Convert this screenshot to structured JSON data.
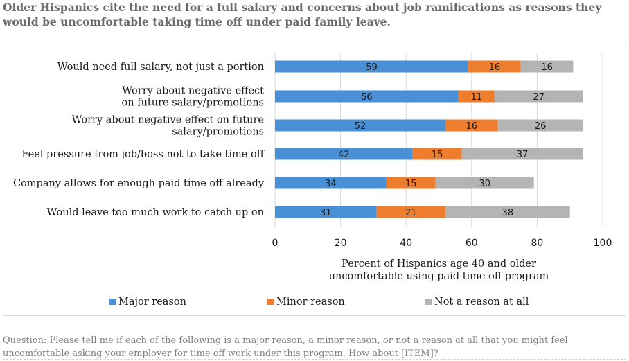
{
  "title_lines": [
    "Older Hispanics cite the need for a full salary and concerns about job ramifications as reasons they",
    "would be uncomfortable taking time off under paid family leave."
  ],
  "footer_lines": [
    "Question: Please tell me if each of the following is a major reason, a minor reason, or not a reason at all that you might feel",
    "uncomfortable asking your employer for time off work under this program. How about [ITEM]?"
  ],
  "chart_data": {
    "type": "bar",
    "orientation": "horizontal",
    "stacked": true,
    "categories": [
      [
        "Would need full salary, not just a portion"
      ],
      [
        "Worry about negative effect",
        "on future salary/promotions"
      ],
      [
        "Worry about negative effect on future",
        "salary/promotions"
      ],
      [
        "Feel pressure from job/boss not to take time off"
      ],
      [
        "Company allows for enough paid time off already"
      ],
      [
        "Would leave too much work to catch up on"
      ]
    ],
    "series": [
      {
        "name": "Major reason",
        "color": "#4a90d6",
        "values": [
          59,
          56,
          52,
          42,
          34,
          31
        ]
      },
      {
        "name": "Minor reason",
        "color": "#ee7d2d",
        "values": [
          16,
          11,
          16,
          15,
          15,
          21
        ]
      },
      {
        "name": "Not a reason at all",
        "color": "#b4b4b4",
        "values": [
          16,
          27,
          26,
          37,
          30,
          38
        ]
      }
    ],
    "xlim": [
      0,
      100
    ],
    "xticks": [
      0,
      20,
      40,
      60,
      80,
      100
    ],
    "xlabel_lines": [
      "Percent of Hispanics age 40 and older",
      "uncomfortable using paid time off program"
    ],
    "ylabel": "",
    "grid": "vertical",
    "legend_position": "bottom",
    "data_labels": true
  }
}
